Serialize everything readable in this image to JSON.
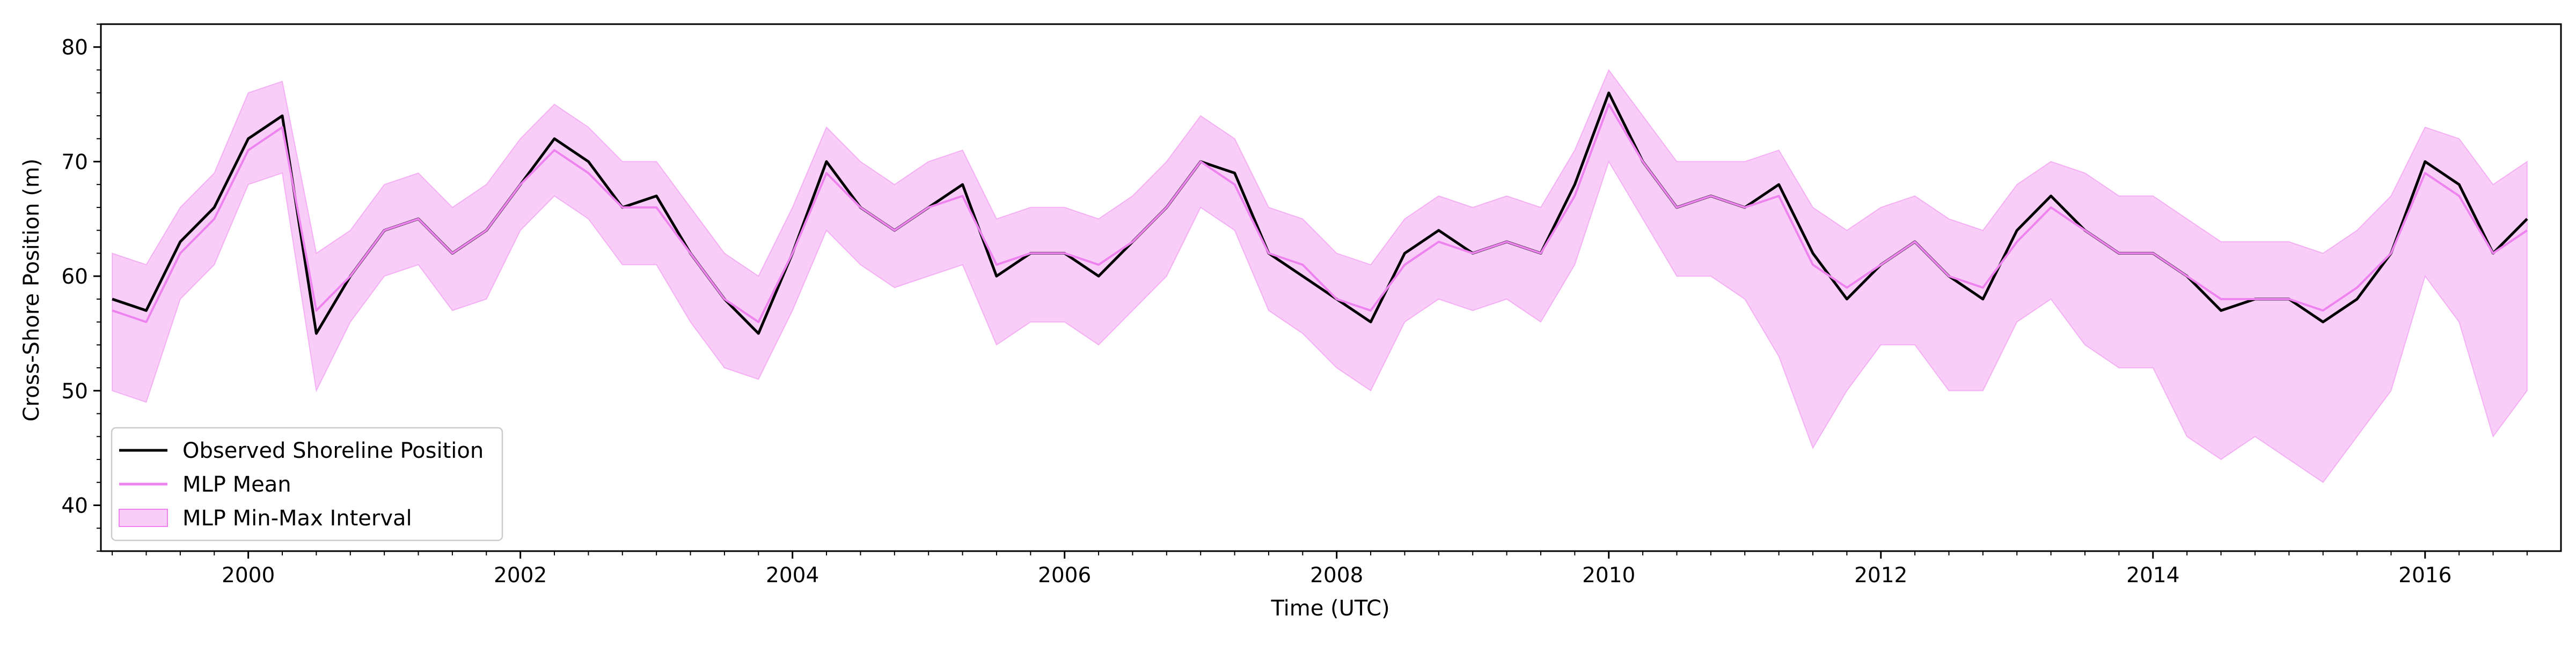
{
  "chart_data": {
    "type": "line",
    "title": "",
    "xlabel": "Time (UTC)",
    "ylabel": "Cross-Shore Position (m)",
    "xlim": [
      "1998-12-01",
      "2016-12-31"
    ],
    "ylim": [
      36,
      82
    ],
    "x_ticks": [
      "2000",
      "2002",
      "2004",
      "2006",
      "2008",
      "2010",
      "2012",
      "2014",
      "2016"
    ],
    "y_ticks": [
      40,
      50,
      60,
      70,
      80
    ],
    "grid": false,
    "legend_position": "lower-left",
    "colors": {
      "observed": "#000000",
      "mlp_mean": "#ee82ee",
      "mlp_band": "#ee82ee"
    },
    "series": [
      {
        "name": "Observed Shoreline Position",
        "kind": "line",
        "x": [
          "1999-01",
          "1999-04",
          "1999-07",
          "1999-10",
          "2000-01",
          "2000-04",
          "2000-07",
          "2000-10",
          "2001-01",
          "2001-04",
          "2001-07",
          "2001-10",
          "2002-01",
          "2002-04",
          "2002-07",
          "2002-10",
          "2003-01",
          "2003-04",
          "2003-07",
          "2003-10",
          "2004-01",
          "2004-04",
          "2004-07",
          "2004-10",
          "2005-01",
          "2005-04",
          "2005-07",
          "2005-10",
          "2006-01",
          "2006-04",
          "2006-07",
          "2006-10",
          "2007-01",
          "2007-04",
          "2007-07",
          "2007-10",
          "2008-01",
          "2008-04",
          "2008-07",
          "2008-10",
          "2009-01",
          "2009-04",
          "2009-07",
          "2009-10",
          "2010-01",
          "2010-04",
          "2010-07",
          "2010-10",
          "2011-01",
          "2011-04",
          "2011-07",
          "2011-10",
          "2012-01",
          "2012-04",
          "2012-07",
          "2012-10",
          "2013-01",
          "2013-04",
          "2013-07",
          "2013-10",
          "2014-01",
          "2014-04",
          "2014-07",
          "2014-10",
          "2015-01",
          "2015-04",
          "2015-07",
          "2015-10",
          "2016-01",
          "2016-04",
          "2016-07",
          "2016-10"
        ],
        "values": [
          58,
          57,
          63,
          66,
          72,
          74,
          55,
          60,
          64,
          65,
          62,
          64,
          68,
          72,
          70,
          66,
          67,
          62,
          58,
          55,
          62,
          70,
          66,
          64,
          66,
          68,
          60,
          62,
          62,
          60,
          63,
          66,
          70,
          69,
          62,
          60,
          58,
          56,
          62,
          64,
          62,
          63,
          62,
          68,
          76,
          70,
          66,
          67,
          66,
          68,
          62,
          58,
          61,
          63,
          60,
          58,
          64,
          67,
          64,
          62,
          62,
          60,
          57,
          58,
          58,
          56,
          58,
          62,
          70,
          68,
          62,
          65
        ]
      },
      {
        "name": "MLP Mean",
        "kind": "line",
        "x": [
          "1999-01",
          "1999-04",
          "1999-07",
          "1999-10",
          "2000-01",
          "2000-04",
          "2000-07",
          "2000-10",
          "2001-01",
          "2001-04",
          "2001-07",
          "2001-10",
          "2002-01",
          "2002-04",
          "2002-07",
          "2002-10",
          "2003-01",
          "2003-04",
          "2003-07",
          "2003-10",
          "2004-01",
          "2004-04",
          "2004-07",
          "2004-10",
          "2005-01",
          "2005-04",
          "2005-07",
          "2005-10",
          "2006-01",
          "2006-04",
          "2006-07",
          "2006-10",
          "2007-01",
          "2007-04",
          "2007-07",
          "2007-10",
          "2008-01",
          "2008-04",
          "2008-07",
          "2008-10",
          "2009-01",
          "2009-04",
          "2009-07",
          "2009-10",
          "2010-01",
          "2010-04",
          "2010-07",
          "2010-10",
          "2011-01",
          "2011-04",
          "2011-07",
          "2011-10",
          "2012-01",
          "2012-04",
          "2012-07",
          "2012-10",
          "2013-01",
          "2013-04",
          "2013-07",
          "2013-10",
          "2014-01",
          "2014-04",
          "2014-07",
          "2014-10",
          "2015-01",
          "2015-04",
          "2015-07",
          "2015-10",
          "2016-01",
          "2016-04",
          "2016-07",
          "2016-10"
        ],
        "values": [
          57,
          56,
          62,
          65,
          71,
          73,
          57,
          60,
          64,
          65,
          62,
          64,
          68,
          71,
          69,
          66,
          66,
          62,
          58,
          56,
          62,
          69,
          66,
          64,
          66,
          67,
          61,
          62,
          62,
          61,
          63,
          66,
          70,
          68,
          62,
          61,
          58,
          57,
          61,
          63,
          62,
          63,
          62,
          67,
          75,
          70,
          66,
          67,
          66,
          67,
          61,
          59,
          61,
          63,
          60,
          59,
          63,
          66,
          64,
          62,
          62,
          60,
          58,
          58,
          58,
          57,
          59,
          62,
          69,
          67,
          62,
          64
        ]
      },
      {
        "name": "MLP Min-Max Interval",
        "kind": "band",
        "x": [
          "1999-01",
          "1999-04",
          "1999-07",
          "1999-10",
          "2000-01",
          "2000-04",
          "2000-07",
          "2000-10",
          "2001-01",
          "2001-04",
          "2001-07",
          "2001-10",
          "2002-01",
          "2002-04",
          "2002-07",
          "2002-10",
          "2003-01",
          "2003-04",
          "2003-07",
          "2003-10",
          "2004-01",
          "2004-04",
          "2004-07",
          "2004-10",
          "2005-01",
          "2005-04",
          "2005-07",
          "2005-10",
          "2006-01",
          "2006-04",
          "2006-07",
          "2006-10",
          "2007-01",
          "2007-04",
          "2007-07",
          "2007-10",
          "2008-01",
          "2008-04",
          "2008-07",
          "2008-10",
          "2009-01",
          "2009-04",
          "2009-07",
          "2009-10",
          "2010-01",
          "2010-04",
          "2010-07",
          "2010-10",
          "2011-01",
          "2011-04",
          "2011-07",
          "2011-10",
          "2012-01",
          "2012-04",
          "2012-07",
          "2012-10",
          "2013-01",
          "2013-04",
          "2013-07",
          "2013-10",
          "2014-01",
          "2014-04",
          "2014-07",
          "2014-10",
          "2015-01",
          "2015-04",
          "2015-07",
          "2015-10",
          "2016-01",
          "2016-04",
          "2016-07",
          "2016-10"
        ],
        "lower": [
          50,
          49,
          58,
          61,
          68,
          69,
          50,
          56,
          60,
          61,
          57,
          58,
          64,
          67,
          65,
          61,
          61,
          56,
          52,
          51,
          57,
          64,
          61,
          59,
          60,
          61,
          54,
          56,
          56,
          54,
          57,
          60,
          66,
          64,
          57,
          55,
          52,
          50,
          56,
          58,
          57,
          58,
          56,
          61,
          70,
          65,
          60,
          60,
          58,
          53,
          45,
          50,
          54,
          54,
          50,
          50,
          56,
          58,
          54,
          52,
          52,
          46,
          44,
          46,
          44,
          42,
          46,
          50,
          60,
          56,
          46,
          50
        ],
        "upper": [
          62,
          61,
          66,
          69,
          76,
          77,
          62,
          64,
          68,
          69,
          66,
          68,
          72,
          75,
          73,
          70,
          70,
          66,
          62,
          60,
          66,
          73,
          70,
          68,
          70,
          71,
          65,
          66,
          66,
          65,
          67,
          70,
          74,
          72,
          66,
          65,
          62,
          61,
          65,
          67,
          66,
          67,
          66,
          71,
          78,
          74,
          70,
          70,
          70,
          71,
          66,
          64,
          66,
          67,
          65,
          64,
          68,
          70,
          69,
          67,
          67,
          65,
          63,
          63,
          63,
          62,
          64,
          67,
          73,
          72,
          68,
          70
        ]
      }
    ]
  }
}
